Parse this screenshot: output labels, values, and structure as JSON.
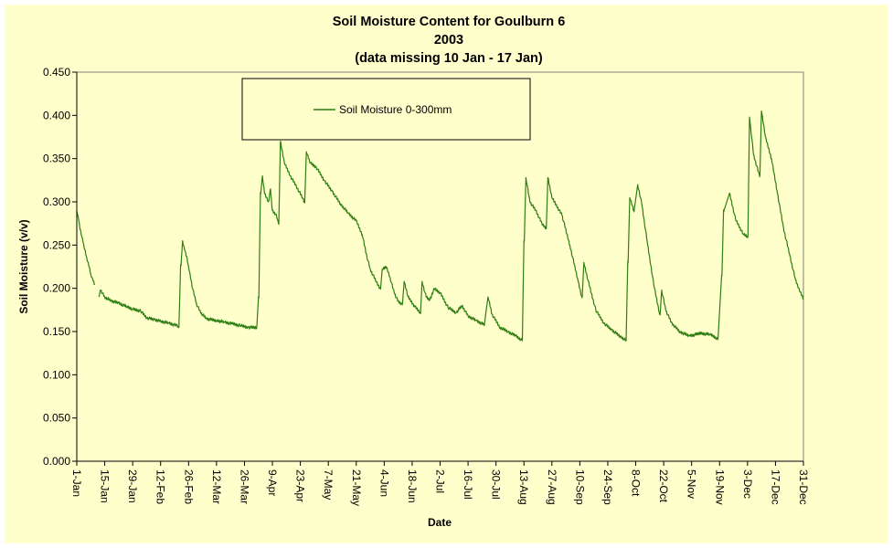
{
  "chart_data": {
    "type": "line",
    "title": "Soil Moisture Content for Goulburn 6",
    "title_line2": "2003",
    "subtitle": "(data missing 10 Jan - 17 Jan)",
    "xlabel": "Date",
    "ylabel": "Soil Moisture (v/v)",
    "ylim": [
      0,
      0.45
    ],
    "y_ticks": [
      "0.000",
      "0.050",
      "0.100",
      "0.150",
      "0.200",
      "0.250",
      "0.300",
      "0.350",
      "0.400",
      "0.450"
    ],
    "x_ticks": [
      "1-Jan",
      "15-Jan",
      "29-Jan",
      "12-Feb",
      "26-Feb",
      "12-Mar",
      "26-Mar",
      "9-Apr",
      "23-Apr",
      "7-May",
      "21-May",
      "4-Jun",
      "18-Jun",
      "2-Jul",
      "16-Jul",
      "30-Jul",
      "13-Aug",
      "27-Aug",
      "10-Sep",
      "24-Sep",
      "8-Oct",
      "22-Oct",
      "5-Nov",
      "19-Nov",
      "3-Dec",
      "17-Dec",
      "31-Dec"
    ],
    "grid": false,
    "legend_position": "top-center",
    "background_color": "#ffffcc",
    "series": [
      {
        "name": "Soil Moisture 0-300mm",
        "color": "#2e7d10",
        "segments": [
          [
            [
              "1-Jan",
              0.29
            ],
            [
              "2-Jan",
              0.278
            ],
            [
              "3-Jan",
              0.266
            ],
            [
              "4-Jan",
              0.255
            ],
            [
              "5-Jan",
              0.245
            ],
            [
              "6-Jan",
              0.235
            ],
            [
              "7-Jan",
              0.226
            ],
            [
              "8-Jan",
              0.217
            ],
            [
              "9-Jan",
              0.21
            ],
            [
              "10-Jan",
              0.205
            ]
          ],
          [
            [
              "12-Jan",
              0.19
            ],
            [
              "13-Jan",
              0.198
            ],
            [
              "15-Jan",
              0.19
            ],
            [
              "18-Jan",
              0.186
            ],
            [
              "22-Jan",
              0.183
            ],
            [
              "26-Jan",
              0.179
            ],
            [
              "29-Jan",
              0.176
            ],
            [
              "2-Feb",
              0.174
            ],
            [
              "5-Feb",
              0.166
            ],
            [
              "9-Feb",
              0.164
            ],
            [
              "12-Feb",
              0.162
            ],
            [
              "16-Feb",
              0.16
            ],
            [
              "20-Feb",
              0.157
            ],
            [
              "21-Feb",
              0.155
            ],
            [
              "22-Feb",
              0.227
            ],
            [
              "23-Feb",
              0.255
            ],
            [
              "24-Feb",
              0.245
            ],
            [
              "25-Feb",
              0.237
            ],
            [
              "26-Feb",
              0.225
            ],
            [
              "28-Feb",
              0.2
            ],
            [
              "2-Mar",
              0.182
            ],
            [
              "4-Mar",
              0.172
            ],
            [
              "7-Mar",
              0.165
            ],
            [
              "12-Mar",
              0.163
            ],
            [
              "16-Mar",
              0.161
            ],
            [
              "20-Mar",
              0.159
            ],
            [
              "24-Mar",
              0.157
            ],
            [
              "28-Mar",
              0.155
            ],
            [
              "1-Apr",
              0.155
            ],
            [
              "2-Apr",
              0.19
            ],
            [
              "3-Apr",
              0.31
            ],
            [
              "4-Apr",
              0.33
            ],
            [
              "5-Apr",
              0.31
            ],
            [
              "7-Apr",
              0.3
            ],
            [
              "8-Apr",
              0.315
            ],
            [
              "9-Apr",
              0.29
            ],
            [
              "11-Apr",
              0.285
            ],
            [
              "12-Apr",
              0.275
            ],
            [
              "13-Apr",
              0.37
            ],
            [
              "15-Apr",
              0.345
            ],
            [
              "18-Apr",
              0.33
            ],
            [
              "21-Apr",
              0.318
            ],
            [
              "24-Apr",
              0.305
            ],
            [
              "25-Apr",
              0.3
            ],
            [
              "26-Apr",
              0.358
            ],
            [
              "28-Apr",
              0.345
            ],
            [
              "1-May",
              0.34
            ],
            [
              "5-May",
              0.325
            ],
            [
              "9-May",
              0.312
            ],
            [
              "13-May",
              0.298
            ],
            [
              "17-May",
              0.287
            ],
            [
              "21-May",
              0.278
            ],
            [
              "24-May",
              0.262
            ],
            [
              "26-May",
              0.24
            ],
            [
              "28-May",
              0.222
            ],
            [
              "31-May",
              0.208
            ],
            [
              "2-Jun",
              0.2
            ],
            [
              "3-Jun",
              0.222
            ],
            [
              "5-Jun",
              0.225
            ],
            [
              "7-Jun",
              0.212
            ],
            [
              "9-Jun",
              0.195
            ],
            [
              "11-Jun",
              0.185
            ],
            [
              "13-Jun",
              0.182
            ],
            [
              "14-Jun",
              0.208
            ],
            [
              "16-Jun",
              0.19
            ],
            [
              "19-Jun",
              0.18
            ],
            [
              "22-Jun",
              0.172
            ],
            [
              "23-Jun",
              0.208
            ],
            [
              "25-Jun",
              0.19
            ],
            [
              "27-Jun",
              0.187
            ],
            [
              "29-Jun",
              0.2
            ],
            [
              "2-Jul",
              0.195
            ],
            [
              "6-Jul",
              0.178
            ],
            [
              "10-Jul",
              0.172
            ],
            [
              "13-Jul",
              0.18
            ],
            [
              "16-Jul",
              0.168
            ],
            [
              "20-Jul",
              0.163
            ],
            [
              "24-Jul",
              0.158
            ],
            [
              "26-Jul",
              0.19
            ],
            [
              "28-Jul",
              0.17
            ],
            [
              "1-Aug",
              0.155
            ],
            [
              "5-Aug",
              0.15
            ],
            [
              "9-Aug",
              0.145
            ],
            [
              "12-Aug",
              0.14
            ],
            [
              "13-Aug",
              0.255
            ],
            [
              "14-Aug",
              0.328
            ],
            [
              "16-Aug",
              0.3
            ],
            [
              "19-Aug",
              0.29
            ],
            [
              "22-Aug",
              0.275
            ],
            [
              "24-Aug",
              0.27
            ],
            [
              "25-Aug",
              0.328
            ],
            [
              "27-Aug",
              0.305
            ],
            [
              "1-Sep",
              0.285
            ],
            [
              "5-Sep",
              0.25
            ],
            [
              "9-Sep",
              0.21
            ],
            [
              "11-Sep",
              0.19
            ],
            [
              "12-Sep",
              0.23
            ],
            [
              "14-Sep",
              0.21
            ],
            [
              "18-Sep",
              0.175
            ],
            [
              "22-Sep",
              0.16
            ],
            [
              "26-Sep",
              0.152
            ],
            [
              "30-Sep",
              0.145
            ],
            [
              "3-Oct",
              0.14
            ],
            [
              "4-Oct",
              0.23
            ],
            [
              "5-Oct",
              0.305
            ],
            [
              "7-Oct",
              0.29
            ],
            [
              "9-Oct",
              0.32
            ],
            [
              "11-Oct",
              0.298
            ],
            [
              "14-Oct",
              0.25
            ],
            [
              "17-Oct",
              0.205
            ],
            [
              "20-Oct",
              0.17
            ],
            [
              "21-Oct",
              0.198
            ],
            [
              "23-Oct",
              0.175
            ],
            [
              "26-Oct",
              0.16
            ],
            [
              "30-Oct",
              0.15
            ],
            [
              "4-Nov",
              0.145
            ],
            [
              "9-Nov",
              0.148
            ],
            [
              "14-Nov",
              0.147
            ],
            [
              "18-Nov",
              0.142
            ],
            [
              "20-Nov",
              0.215
            ],
            [
              "21-Nov",
              0.29
            ],
            [
              "24-Nov",
              0.31
            ],
            [
              "27-Nov",
              0.28
            ],
            [
              "1-Dec",
              0.262
            ],
            [
              "3-Dec",
              0.26
            ],
            [
              "4-Dec",
              0.398
            ],
            [
              "6-Dec",
              0.355
            ],
            [
              "9-Dec",
              0.33
            ],
            [
              "10-Dec",
              0.405
            ],
            [
              "12-Dec",
              0.375
            ],
            [
              "15-Dec",
              0.35
            ],
            [
              "18-Dec",
              0.31
            ],
            [
              "21-Dec",
              0.27
            ],
            [
              "24-Dec",
              0.24
            ],
            [
              "27-Dec",
              0.21
            ],
            [
              "29-Dec",
              0.198
            ],
            [
              "31-Dec",
              0.188
            ]
          ]
        ]
      }
    ]
  }
}
